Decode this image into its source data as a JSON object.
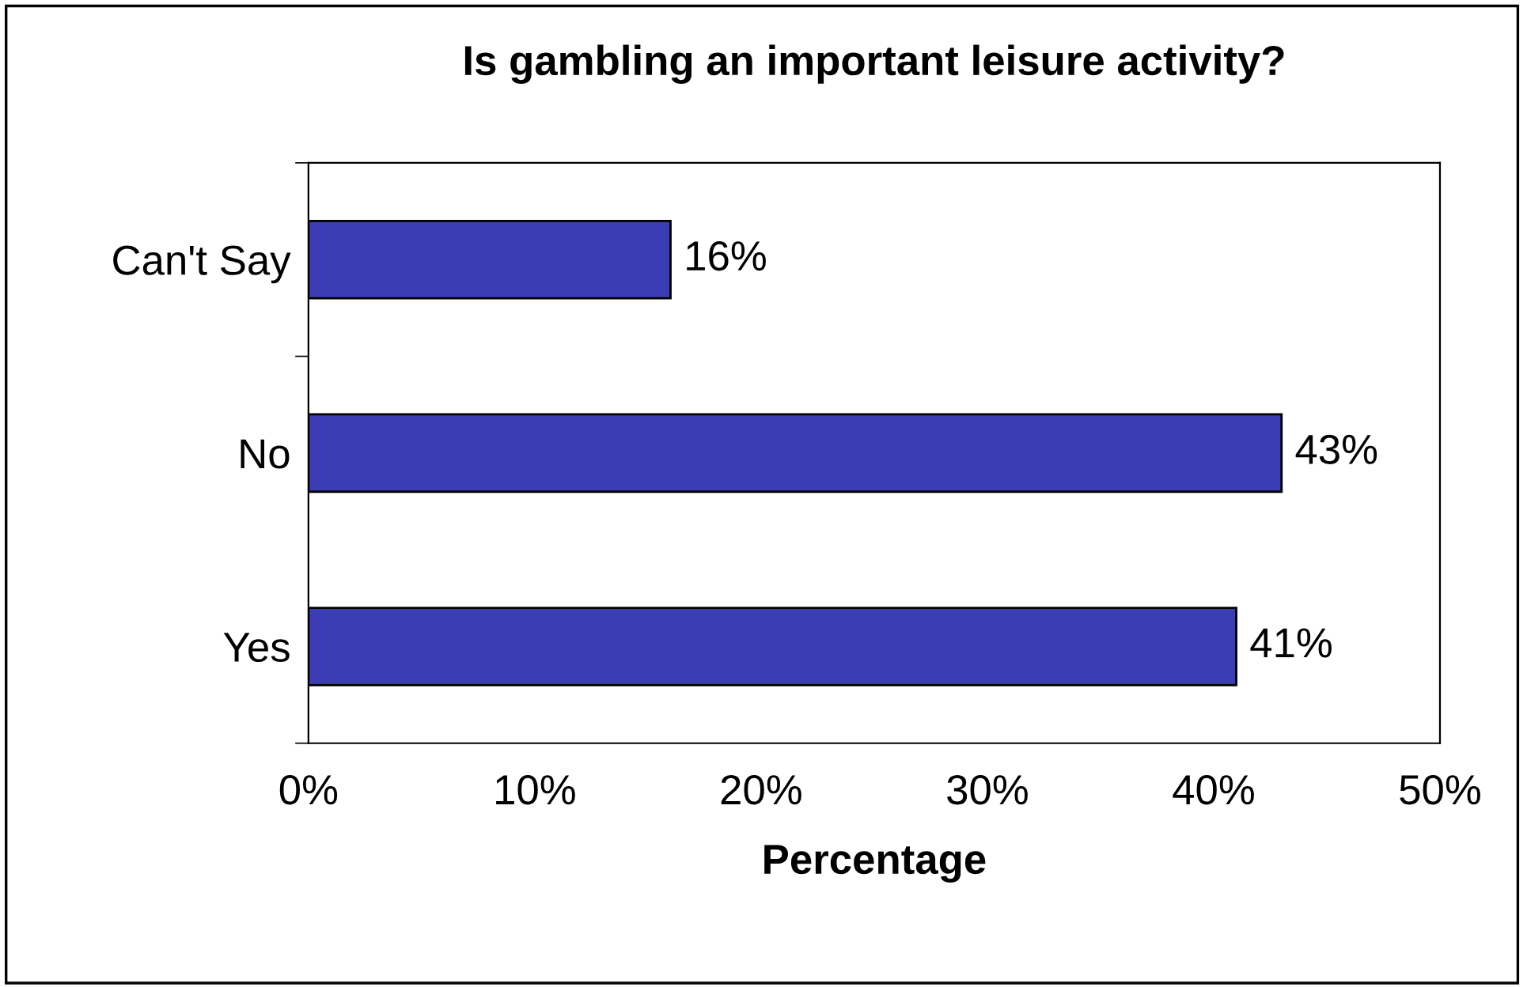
{
  "chart_data": {
    "type": "bar",
    "orientation": "horizontal",
    "title": "Is gambling an important leisure activity?",
    "xlabel": "Percentage",
    "categories": [
      "Can't Say",
      "No",
      "Yes"
    ],
    "values": [
      16,
      43,
      41
    ],
    "color": "#3b3db5",
    "value_labels": [
      "16%",
      "43%",
      "41%"
    ],
    "xlim": [
      0,
      50
    ],
    "xticks": [
      {
        "value": 0,
        "label": "0%"
      },
      {
        "value": 10,
        "label": "10%"
      },
      {
        "value": 20,
        "label": "20%"
      },
      {
        "value": 30,
        "label": "30%"
      },
      {
        "value": 40,
        "label": "40%"
      },
      {
        "value": 50,
        "label": "50%"
      }
    ],
    "grid": false
  }
}
